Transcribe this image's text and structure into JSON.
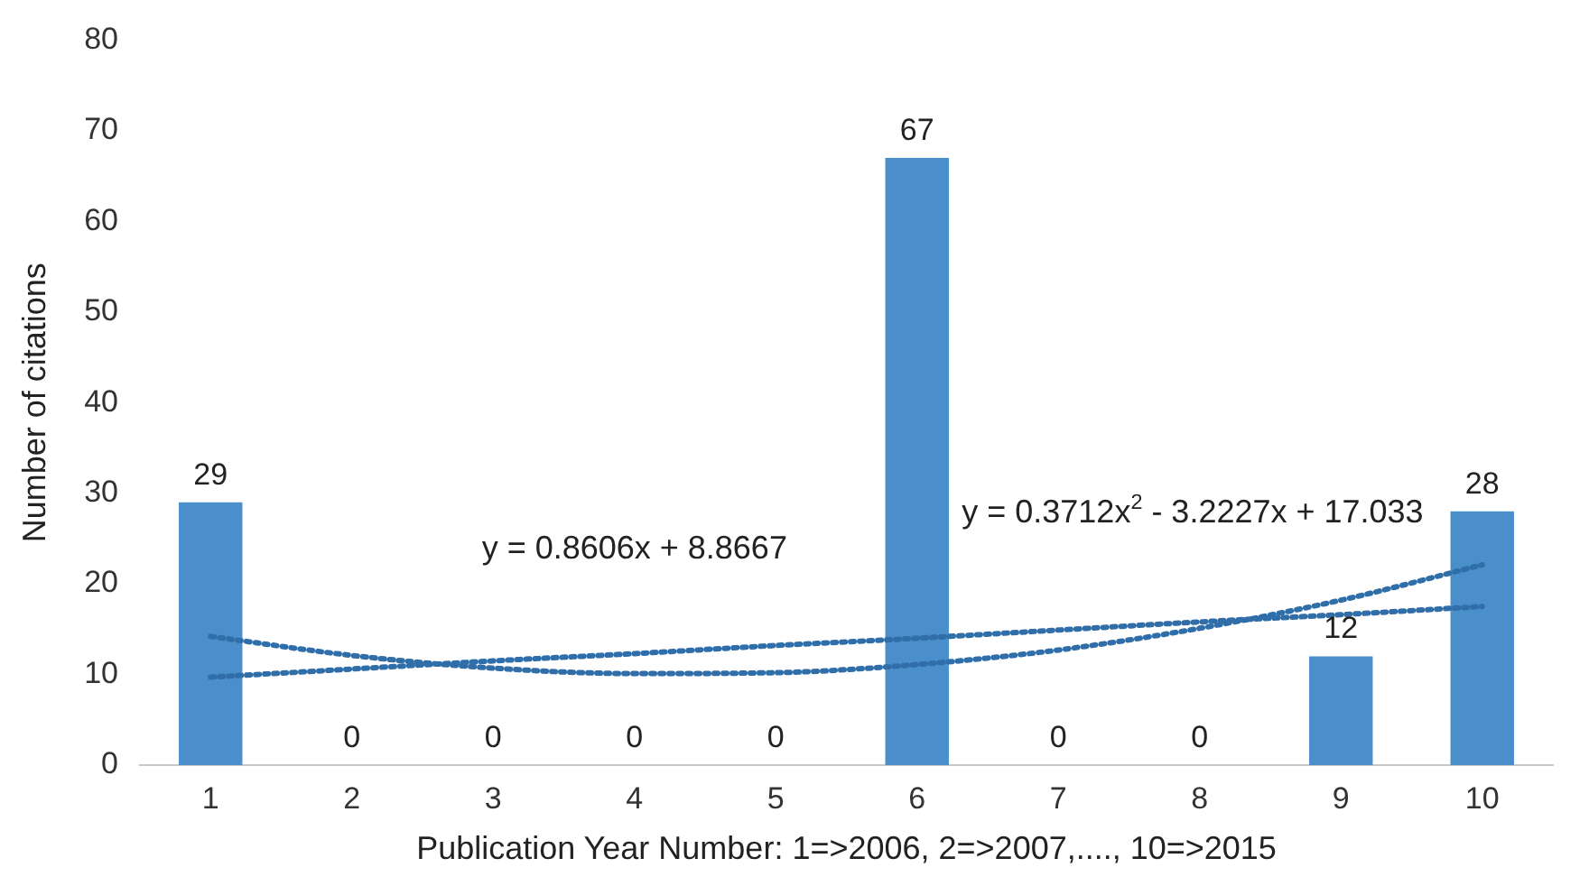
{
  "chart_data": {
    "type": "bar",
    "xlabel": "Publication Year Number: 1=>2006, 2=>2007,...., 10=>2015",
    "ylabel": "Number of citations",
    "categories": [
      "1",
      "2",
      "3",
      "4",
      "5",
      "6",
      "7",
      "8",
      "9",
      "10"
    ],
    "series": [
      {
        "color": "#4a8fcc",
        "values": [
          29,
          0,
          0,
          0,
          0,
          67,
          0,
          0,
          12,
          28
        ],
        "value_labels": [
          "29",
          "0",
          "0",
          "0",
          "0",
          "67",
          "0",
          "0",
          "12",
          "28"
        ]
      },
      {
        "type": "line",
        "color": "#2f6ea8",
        "line_style": "dotted",
        "marker": "none",
        "values": [
          9.7,
          10.6,
          11.5,
          12.3,
          13.2,
          14.0,
          14.9,
          15.8,
          16.6,
          17.5
        ]
      },
      {
        "type": "line",
        "color": "#2f6ea8",
        "line_style": "dotted",
        "marker": "none",
        "values": [
          14.2,
          12.1,
          10.7,
          10.1,
          10.2,
          11.1,
          12.7,
          15.1,
          18.2,
          22.1
        ]
      }
    ],
    "ylim": [
      0,
      80
    ],
    "yticks": [
      0,
      10,
      20,
      30,
      40,
      50,
      60,
      70,
      80
    ],
    "grid": false,
    "legend": false,
    "annotations": [
      "y = 0.8606x + 8.8667",
      "y = 0.3712x$^{2}$ - 3.2227x + 17.033"
    ]
  }
}
